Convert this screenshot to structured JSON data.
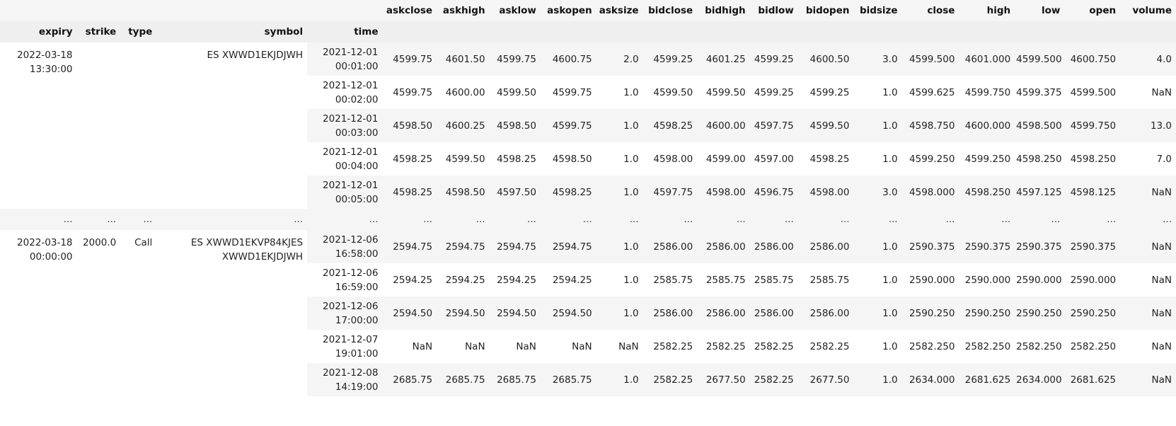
{
  "columns": [
    "askclose",
    "askhigh",
    "asklow",
    "askopen",
    "asksize",
    "bidclose",
    "bidhigh",
    "bidlow",
    "bidopen",
    "bidsize",
    "close",
    "high",
    "low",
    "open",
    "volume"
  ],
  "index_names": [
    "expiry",
    "strike",
    "type",
    "symbol",
    "time"
  ],
  "ellipsis": "...",
  "group1": {
    "expiry": "2022-03-18\n13:30:00",
    "strike": "",
    "type": "",
    "symbol": "ES XWWD1EKJDJWH",
    "rows": [
      {
        "time": "2021-12-01\n00:01:00",
        "v": [
          "4599.75",
          "4601.50",
          "4599.75",
          "4600.75",
          "2.0",
          "4599.25",
          "4601.25",
          "4599.25",
          "4600.50",
          "3.0",
          "4599.500",
          "4601.000",
          "4599.500",
          "4600.750",
          "4.0"
        ]
      },
      {
        "time": "2021-12-01\n00:02:00",
        "v": [
          "4599.75",
          "4600.00",
          "4599.50",
          "4599.75",
          "1.0",
          "4599.50",
          "4599.50",
          "4599.25",
          "4599.25",
          "1.0",
          "4599.625",
          "4599.750",
          "4599.375",
          "4599.500",
          "NaN"
        ]
      },
      {
        "time": "2021-12-01\n00:03:00",
        "v": [
          "4598.50",
          "4600.25",
          "4598.50",
          "4599.75",
          "1.0",
          "4598.25",
          "4600.00",
          "4597.75",
          "4599.50",
          "1.0",
          "4598.750",
          "4600.000",
          "4598.500",
          "4599.750",
          "13.0"
        ]
      },
      {
        "time": "2021-12-01\n00:04:00",
        "v": [
          "4598.25",
          "4599.50",
          "4598.25",
          "4598.50",
          "1.0",
          "4598.00",
          "4599.00",
          "4597.00",
          "4598.25",
          "1.0",
          "4599.250",
          "4599.250",
          "4598.250",
          "4598.250",
          "7.0"
        ]
      },
      {
        "time": "2021-12-01\n00:05:00",
        "v": [
          "4598.25",
          "4598.50",
          "4597.50",
          "4598.25",
          "1.0",
          "4597.75",
          "4598.00",
          "4596.75",
          "4598.00",
          "3.0",
          "4598.000",
          "4598.250",
          "4597.125",
          "4598.125",
          "NaN"
        ]
      }
    ]
  },
  "group2": {
    "expiry": "2022-03-18\n00:00:00",
    "strike": "2000.0",
    "type": "Call",
    "symbol": "ES XWWD1EKVP84KJES\nXWWD1EKJDJWH",
    "rows": [
      {
        "time": "2021-12-06\n16:58:00",
        "v": [
          "2594.75",
          "2594.75",
          "2594.75",
          "2594.75",
          "1.0",
          "2586.00",
          "2586.00",
          "2586.00",
          "2586.00",
          "1.0",
          "2590.375",
          "2590.375",
          "2590.375",
          "2590.375",
          "NaN"
        ]
      },
      {
        "time": "2021-12-06\n16:59:00",
        "v": [
          "2594.25",
          "2594.25",
          "2594.25",
          "2594.25",
          "1.0",
          "2585.75",
          "2585.75",
          "2585.75",
          "2585.75",
          "1.0",
          "2590.000",
          "2590.000",
          "2590.000",
          "2590.000",
          "NaN"
        ]
      },
      {
        "time": "2021-12-06\n17:00:00",
        "v": [
          "2594.50",
          "2594.50",
          "2594.50",
          "2594.50",
          "1.0",
          "2586.00",
          "2586.00",
          "2586.00",
          "2586.00",
          "1.0",
          "2590.250",
          "2590.250",
          "2590.250",
          "2590.250",
          "NaN"
        ]
      },
      {
        "time": "2021-12-07\n19:01:00",
        "v": [
          "NaN",
          "NaN",
          "NaN",
          "NaN",
          "NaN",
          "2582.25",
          "2582.25",
          "2582.25",
          "2582.25",
          "1.0",
          "2582.250",
          "2582.250",
          "2582.250",
          "2582.250",
          "NaN"
        ]
      },
      {
        "time": "2021-12-08\n14:19:00",
        "v": [
          "2685.75",
          "2685.75",
          "2685.75",
          "2685.75",
          "1.0",
          "2582.25",
          "2677.50",
          "2582.25",
          "2677.50",
          "1.0",
          "2634.000",
          "2681.625",
          "2634.000",
          "2681.625",
          "NaN"
        ]
      }
    ]
  }
}
